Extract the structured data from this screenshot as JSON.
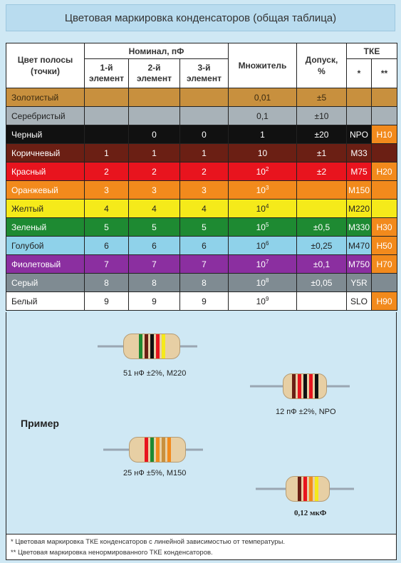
{
  "title": "Цветовая маркировка конденсаторов (общая таблица)",
  "header": {
    "color_col": "Цвет полосы (точки)",
    "nominal": "Номинал, пФ",
    "el1": "1-й элемент",
    "el2": "2-й элемент",
    "el3": "3-й элемент",
    "multiplier": "Множитель",
    "tolerance": "Допуск, %",
    "tke": "ТКЕ",
    "tke1": "*",
    "tke2": "**"
  },
  "rows": [
    {
      "name": "Золотистый",
      "bg": "#c8903e",
      "fg": "#3a2a10",
      "e1": "",
      "e2": "",
      "e3": "",
      "mult": "0,01",
      "sup": "",
      "tol": "±5",
      "t1": "",
      "t2": ""
    },
    {
      "name": "Серебристый",
      "bg": "#a8b2b8",
      "fg": "#222",
      "e1": "",
      "e2": "",
      "e3": "",
      "mult": "0,1",
      "sup": "",
      "tol": "±10",
      "t1": "",
      "t2": ""
    },
    {
      "name": "Черный",
      "bg": "#111111",
      "fg": "#ffffff",
      "e1": "",
      "e2": "0",
      "e3": "0",
      "mult": "1",
      "sup": "",
      "tol": "±20",
      "t1": "NPO",
      "t2": "H10"
    },
    {
      "name": "Коричневый",
      "bg": "#6b1f14",
      "fg": "#ffffff",
      "e1": "1",
      "e2": "1",
      "e3": "1",
      "mult": "10",
      "sup": "",
      "tol": "±1",
      "t1": "M33",
      "t2": ""
    },
    {
      "name": "Красный",
      "bg": "#e8141e",
      "fg": "#ffffff",
      "e1": "2",
      "e2": "2",
      "e3": "2",
      "mult": "10",
      "sup": "2",
      "tol": "±2",
      "t1": "M75",
      "t2": "H20"
    },
    {
      "name": "Оранжевый",
      "bg": "#f28a1c",
      "fg": "#ffffff",
      "e1": "3",
      "e2": "3",
      "e3": "3",
      "mult": "10",
      "sup": "3",
      "tol": "",
      "t1": "M150",
      "t2": ""
    },
    {
      "name": "Желтый",
      "bg": "#f5ea1a",
      "fg": "#222222",
      "e1": "4",
      "e2": "4",
      "e3": "4",
      "mult": "10",
      "sup": "4",
      "tol": "",
      "t1": "M220",
      "t2": ""
    },
    {
      "name": "Зеленый",
      "bg": "#1e8a32",
      "fg": "#ffffff",
      "e1": "5",
      "e2": "5",
      "e3": "5",
      "mult": "10",
      "sup": "5",
      "tol": "±0,5",
      "t1": "M330",
      "t2": "H30"
    },
    {
      "name": "Голубой",
      "bg": "#8fd2ea",
      "fg": "#222222",
      "e1": "6",
      "e2": "6",
      "e3": "6",
      "mult": "10",
      "sup": "6",
      "tol": "±0,25",
      "t1": "M470",
      "t2": "H50"
    },
    {
      "name": "Фиолетовый",
      "bg": "#8b2fa0",
      "fg": "#ffffff",
      "e1": "7",
      "e2": "7",
      "e3": "7",
      "mult": "10",
      "sup": "7",
      "tol": "±0,1",
      "t1": "M750",
      "t2": "H70"
    },
    {
      "name": "Серый",
      "bg": "#7f8b92",
      "fg": "#ffffff",
      "e1": "8",
      "e2": "8",
      "e3": "8",
      "mult": "10",
      "sup": "8",
      "tol": "±0,05",
      "t1": "Y5R",
      "t2": ""
    },
    {
      "name": "Белый",
      "bg": "#ffffff",
      "fg": "#222222",
      "e1": "9",
      "e2": "9",
      "e3": "9",
      "mult": "10",
      "sup": "9",
      "tol": "",
      "t1": "SLO",
      "t2": "H90"
    }
  ],
  "example": {
    "label": "Пример",
    "caps": [
      "51 нФ ±2%, M220",
      "12 пФ ±2%, NPO",
      "25 нФ ±5%, M150",
      "0,12 мкФ"
    ]
  },
  "footnotes": [
    "*   Цветовая маркировка ТКЕ конденсаторов с линейной зависимостью от температуры.",
    "** Цветовая маркировка ненормированного ТКЕ конденсаторов."
  ]
}
